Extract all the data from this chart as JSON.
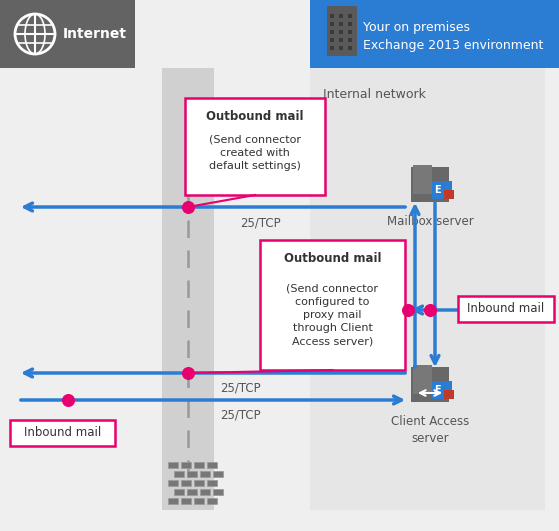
{
  "internet_label": "Internet",
  "your_env_line1": "Your on premises",
  "your_env_line2": "Exchange 2013 environment",
  "internal_network_label": "Internal network",
  "mailbox_server_label": "Mailbox server",
  "client_access_server_label": "Client Access\nserver",
  "inbound_mail_label_right": "Inbound mail",
  "inbound_mail_label_left": "Inbound mail",
  "outbound1_line1": "Outbound mail",
  "outbound1_rest": "(Send connector\ncreated with\ndefault settings)",
  "outbound2_line1": "Outbound mail",
  "outbound2_rest": "(Send connector\nconfigured to\nproxy mail\nthrough Client\nAccess server)",
  "port1_label": "25/TCP",
  "port2_label": "25/TCP",
  "port3_label": "25/TCP",
  "bg_color": "#efefef",
  "internet_header_color": "#636363",
  "env_header_color": "#2b7cd3",
  "internal_network_color": "#e2e2e2",
  "dmz_strip_color": "#d0d0d0",
  "arrow_color": "#2b7cd3",
  "dot_color": "#e8006f",
  "box_border_color": "#e8006f",
  "box_text_color": "#333333",
  "header_text_color": "#ffffff",
  "label_text_color": "#555555",
  "dashed_line_color": "#999999",
  "server_body_color": "#666666",
  "brick_color": "#777777",
  "brick_edge_color": "#999999"
}
